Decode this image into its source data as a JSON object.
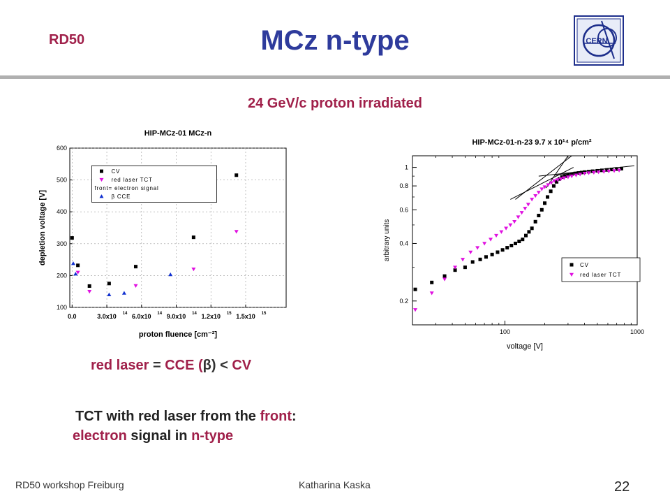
{
  "header": {
    "left_label": "RD50",
    "title": "MCz n-type",
    "logo_text": "CERN"
  },
  "subtitle": "24 GeV/c proton irradiated",
  "chart_data": [
    {
      "type": "scatter",
      "title": "HIP-MCz-01 MCz-n",
      "xlabel": "proton fluence [cm⁻²]",
      "ylabel": "depletion voltage [V]",
      "ylim": [
        100,
        600
      ],
      "xlim": [
        -20000000000000.0,
        1850000000000000.0
      ],
      "x_ticks": [
        0,
        300000000000000.0,
        600000000000000.0,
        900000000000000.0,
        1200000000000000.0,
        1500000000000000.0
      ],
      "x_tick_labels": [
        "0.0",
        "3.0x10",
        "6.0x10",
        "9.0x10",
        "1.2x10",
        "1.5x10"
      ],
      "x_tick_exps": [
        "",
        "14",
        "14",
        "14",
        "15",
        "15"
      ],
      "y_ticks": [
        100,
        200,
        300,
        400,
        500,
        600
      ],
      "y_tick_labels": [
        "100",
        "200",
        "300",
        "400",
        "500",
        "600"
      ],
      "legend_position": "top-right",
      "legend_note": "front= electron signal",
      "series": [
        {
          "name": "CV",
          "marker": "square",
          "color": "#000000",
          "x": [
            0,
            50000000000000.0,
            150000000000000.0,
            320000000000000.0,
            550000000000000.0,
            1050000000000000.0,
            1420000000000000.0
          ],
          "y": [
            318,
            232,
            167,
            175,
            228,
            320,
            515
          ]
        },
        {
          "name": "red laser TCT",
          "marker": "triangle-down",
          "color": "#E010E0",
          "x": [
            50000000000000.0,
            150000000000000.0,
            550000000000000.0,
            1050000000000000.0,
            1420000000000000.0
          ],
          "y": [
            210,
            150,
            168,
            220,
            338
          ]
        },
        {
          "name": "β CCE",
          "marker": "triangle-up",
          "color": "#1030D0",
          "x": [
            10000000000000.0,
            30000000000000.0,
            320000000000000.0,
            450000000000000.0,
            850000000000000.0
          ],
          "y": [
            238,
            205,
            140,
            145,
            203
          ]
        }
      ]
    },
    {
      "type": "scatter",
      "title": "HIP-MCz-01-n-23 9.7  x 10¹⁴ p/cm²",
      "xlabel": "voltage [V]",
      "ylabel": "arbitrary units",
      "x_scale": "log",
      "y_scale": "log",
      "xlim": [
        20,
        1000
      ],
      "ylim": [
        0.15,
        1.15
      ],
      "x_ticks": [
        100,
        1000
      ],
      "x_tick_labels": [
        "100",
        "1000"
      ],
      "y_ticks": [
        0.2,
        0.4,
        0.6,
        0.8,
        1
      ],
      "y_tick_labels": [
        "0.2",
        "0.4",
        "0.6",
        "0.8",
        "1"
      ],
      "legend_position": "bottom-right",
      "series": [
        {
          "name": "CV",
          "marker": "square",
          "color": "#000000",
          "x": [
            21,
            28,
            35,
            42,
            50,
            57,
            65,
            72,
            80,
            88,
            96,
            104,
            112,
            120,
            128,
            136,
            144,
            152,
            160,
            170,
            180,
            190,
            200,
            210,
            222,
            234,
            246,
            258,
            270,
            285,
            300,
            320,
            340,
            360,
            380,
            400,
            430,
            460,
            500,
            540,
            590,
            640,
            700,
            760
          ],
          "y": [
            0.23,
            0.25,
            0.27,
            0.29,
            0.3,
            0.32,
            0.33,
            0.34,
            0.35,
            0.36,
            0.37,
            0.38,
            0.39,
            0.4,
            0.41,
            0.42,
            0.44,
            0.46,
            0.48,
            0.52,
            0.56,
            0.6,
            0.65,
            0.7,
            0.75,
            0.8,
            0.84,
            0.87,
            0.89,
            0.9,
            0.91,
            0.92,
            0.93,
            0.935,
            0.94,
            0.945,
            0.95,
            0.955,
            0.96,
            0.965,
            0.97,
            0.975,
            0.98,
            0.985
          ]
        },
        {
          "name": "red laser TCT",
          "marker": "triangle-down",
          "color": "#E010E0",
          "x": [
            21,
            28,
            35,
            42,
            48,
            55,
            62,
            70,
            78,
            86,
            94,
            102,
            110,
            118,
            126,
            134,
            142,
            150,
            160,
            170,
            180,
            190,
            200,
            212,
            224,
            236,
            250,
            265,
            280,
            300,
            320,
            345,
            370,
            400,
            430,
            470,
            510,
            560,
            610,
            670,
            730
          ],
          "y": [
            0.18,
            0.22,
            0.26,
            0.3,
            0.33,
            0.36,
            0.38,
            0.4,
            0.42,
            0.44,
            0.46,
            0.48,
            0.5,
            0.52,
            0.55,
            0.58,
            0.61,
            0.64,
            0.68,
            0.71,
            0.74,
            0.77,
            0.79,
            0.81,
            0.83,
            0.85,
            0.86,
            0.87,
            0.88,
            0.89,
            0.9,
            0.91,
            0.92,
            0.93,
            0.935,
            0.94,
            0.945,
            0.95,
            0.955,
            0.96,
            0.965
          ]
        }
      ]
    }
  ],
  "statement": {
    "part1": "red laser",
    "part2": " = ",
    "part3": "CCE (",
    "part4": "β",
    "part5": ") < ",
    "part6": "CV"
  },
  "note": {
    "line1_a": "TCT with red laser from the ",
    "line1_b": "front",
    "line1_c": ":",
    "line2_a": "electron",
    "line2_b": " signal in ",
    "line2_c": "n-type"
  },
  "footer": {
    "left": "RD50 workshop Freiburg",
    "center": "Katharina Kaska",
    "page": "22"
  }
}
